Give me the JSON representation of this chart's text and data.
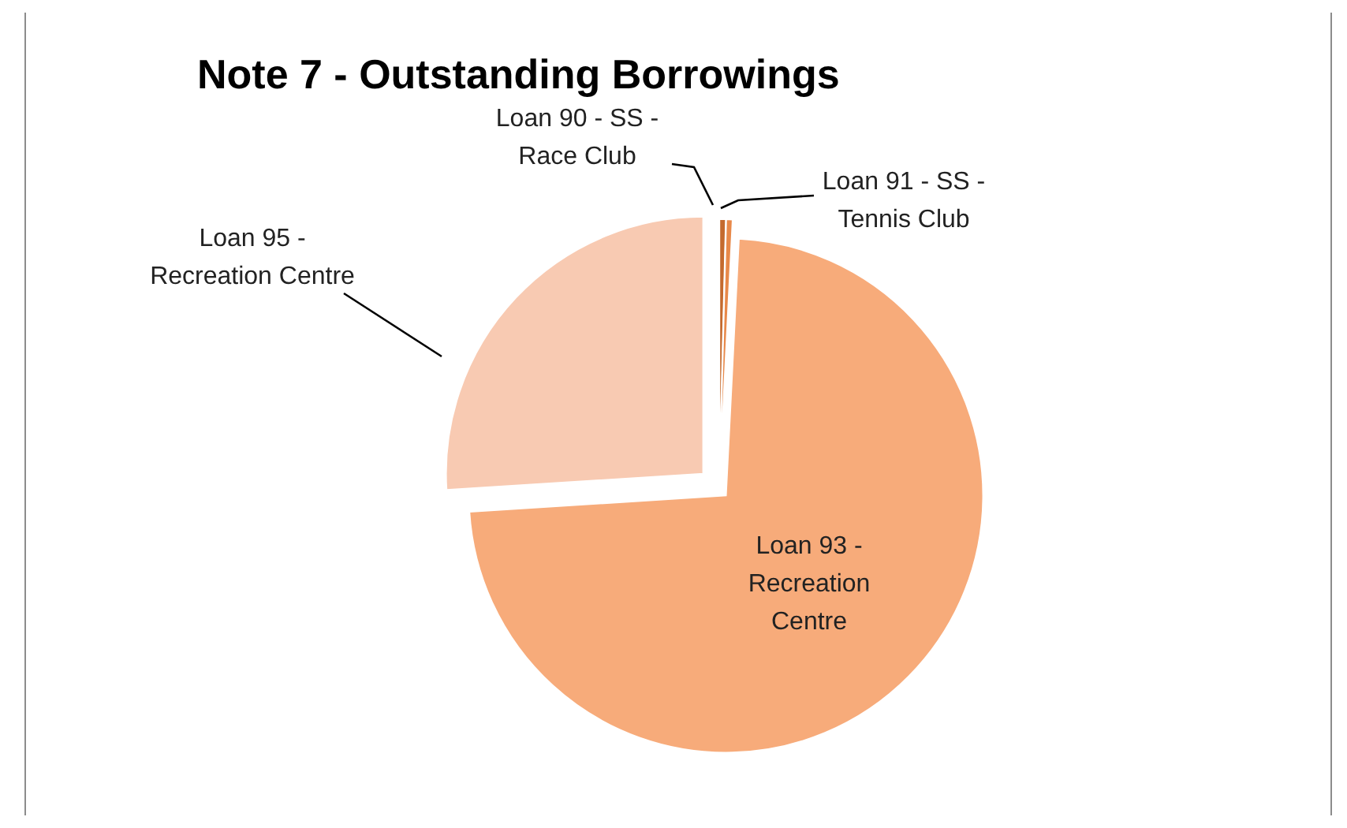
{
  "chart_data": {
    "type": "pie",
    "title": "Note 7 - Outstanding Borrowings",
    "categories": [
      "Loan 90 - SS - Race Club",
      "Loan 91 - SS - Tennis Club",
      "Loan 93 - Recreation Centre",
      "Loan 95 - Recreation Centre"
    ],
    "values": [
      0.4,
      0.4,
      73.2,
      26
    ],
    "colors": [
      "#c46a2e",
      "#e8894a",
      "#f7ab7a",
      "#f8cab2"
    ]
  }
}
